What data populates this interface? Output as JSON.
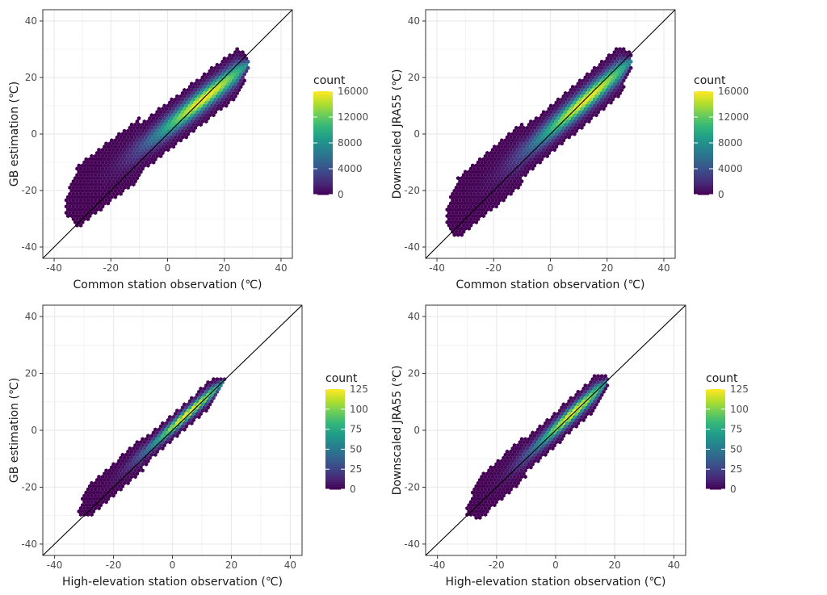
{
  "chart_data": [
    {
      "type": "hexbin",
      "id": "top-left",
      "xlabel": "Common station observation (℃)",
      "ylabel": "GB estimation (℃)",
      "xlim": [
        -44,
        44
      ],
      "ylim": [
        -44,
        44
      ],
      "xticks": [
        -40,
        -20,
        0,
        20,
        40
      ],
      "yticks": [
        -40,
        -20,
        0,
        20,
        40
      ],
      "reference_line": "y = x",
      "legend": {
        "title": "count",
        "breaks": [
          0,
          4000,
          8000,
          12000,
          16000
        ],
        "max": 16000
      },
      "cloud": {
        "x_range": [
          -36,
          29
        ],
        "center_slope": 0.78,
        "center_intercept": 2.5,
        "spread": 5.5
      }
    },
    {
      "type": "hexbin",
      "id": "top-right",
      "xlabel": "Common station observation (℃)",
      "ylabel": "Downscaled JRA55 (℃)",
      "xlim": [
        -44,
        44
      ],
      "ylim": [
        -44,
        44
      ],
      "xticks": [
        -40,
        -20,
        0,
        20,
        40
      ],
      "yticks": [
        -40,
        -20,
        0,
        20,
        40
      ],
      "reference_line": "y = x",
      "legend": {
        "title": "count",
        "breaks": [
          0,
          4000,
          8000,
          12000,
          16000
        ],
        "max": 16000
      },
      "cloud": {
        "x_range": [
          -37,
          29
        ],
        "center_slope": 0.85,
        "center_intercept": 1.5,
        "spread": 5.5
      }
    },
    {
      "type": "hexbin",
      "id": "bottom-left",
      "xlabel": "High-elevation station observation (℃)",
      "ylabel": "GB estimation (℃)",
      "xlim": [
        -44,
        44
      ],
      "ylim": [
        -44,
        44
      ],
      "xticks": [
        -40,
        -20,
        0,
        20,
        40
      ],
      "yticks": [
        -40,
        -20,
        0,
        20,
        40
      ],
      "reference_line": "y = x",
      "legend": {
        "title": "count",
        "breaks": [
          0,
          25,
          50,
          75,
          100,
          125
        ],
        "max": 125
      },
      "cloud": {
        "x_range": [
          -32,
          18
        ],
        "center_slope": 0.92,
        "center_intercept": 1.0,
        "spread": 3.0
      }
    },
    {
      "type": "hexbin",
      "id": "bottom-right",
      "xlabel": "High-elevation station observation (℃)",
      "ylabel": "Downscaled JRA55 (℃)",
      "xlim": [
        -44,
        44
      ],
      "ylim": [
        -44,
        44
      ],
      "xticks": [
        -40,
        -20,
        0,
        20,
        40
      ],
      "yticks": [
        -40,
        -20,
        0,
        20,
        40
      ],
      "reference_line": "y = x",
      "legend": {
        "title": "count",
        "breaks": [
          0,
          25,
          50,
          75,
          100,
          125
        ],
        "max": 125
      },
      "cloud": {
        "x_range": [
          -30,
          18
        ],
        "center_slope": 0.95,
        "center_intercept": 0.5,
        "spread": 3.8
      }
    }
  ],
  "colors": {
    "viridis": [
      "#440154",
      "#482878",
      "#3e4989",
      "#31688e",
      "#26828e",
      "#1f9e89",
      "#35b779",
      "#6ece58",
      "#b5de2b",
      "#fde725"
    ],
    "grid": "#ebebeb",
    "panel_border": "#333333",
    "ref_line": "#000000"
  }
}
